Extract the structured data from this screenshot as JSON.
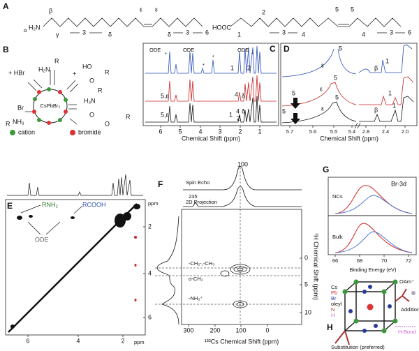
{
  "panels": {
    "a": {
      "letter": "A",
      "left": [
        "β",
        "α",
        "H₂N",
        "γ",
        "3",
        "δ",
        "ε",
        "ε",
        "δ",
        "3",
        "6"
      ],
      "right": [
        "HOOC",
        "2",
        "5",
        "5",
        "1",
        "3",
        "4",
        "4",
        "3",
        "6"
      ]
    },
    "b": {
      "letter": "B",
      "labels": [
        "+ HBr",
        "H₂N",
        "R",
        "HO",
        "O",
        "R",
        "+",
        "Br",
        "R",
        "NH₃",
        "CsPbBr₃",
        "H₃N",
        "R",
        "O",
        "O",
        "R",
        "cation",
        "bromide"
      ]
    },
    "c": {
      "letter": "C",
      "peaks": [
        "ODE",
        "*",
        "ODE",
        "ODE",
        "*",
        "*",
        "*",
        "1",
        "2",
        "5,ε",
        "4",
        "δ",
        "5,ε",
        "1",
        "4",
        "δ",
        "2"
      ],
      "xticks": [
        "6",
        "5",
        "4",
        "3",
        "2",
        "1"
      ],
      "xlabel": "Chemical Shift (ppm)"
    },
    "d": {
      "letter": "D",
      "top": [
        "5",
        "ε",
        "β",
        "1"
      ],
      "mid": [
        "5",
        "ε",
        "5",
        "1"
      ],
      "bottom": [
        "5",
        "ε",
        "5",
        "β",
        "1"
      ],
      "xticks": [
        "5.7",
        "5.6",
        "5.5",
        "5.4",
        "2.8",
        "2.4",
        "2.0"
      ],
      "xlabel": "Chemical Shift (ppm)"
    },
    "e": {
      "letter": "E",
      "labels": [
        "RNH₂",
        "RCOOH",
        "ODE"
      ],
      "yunit": "ppm",
      "yticks": [
        "2",
        "4",
        "6"
      ],
      "xticks": [
        "6",
        "4",
        "2"
      ],
      "xunit": "ppm"
    },
    "f": {
      "letter": "F",
      "labels": [
        "100",
        "Spin Echo",
        "235",
        "2D Projection",
        "-CH₂-,-CH₃",
        "α-CH₂",
        "-NH₃⁺"
      ],
      "xticks": [
        "300",
        "200",
        "100",
        "0"
      ],
      "yticks": [
        "0",
        "5",
        "10"
      ],
      "xlabel": "¹³³Cs Chemical Shift (ppm)",
      "ylabel": "¹H Chemical Shift (ppm)"
    },
    "g": {
      "letter": "G",
      "title": "Br-3d",
      "labels": [
        "NCs",
        "Bulk"
      ],
      "xticks": [
        "66",
        "68",
        "70",
        "72"
      ],
      "xlabel": "Binding Energy (eV)"
    },
    "h": {
      "letter": "H",
      "labels": [
        "Cs",
        "Pb",
        "Br",
        "oleyl",
        "N",
        "H",
        "OAm⁺",
        "Addition",
        "Substitution (preferred)",
        "H-Bond"
      ]
    }
  }
}
